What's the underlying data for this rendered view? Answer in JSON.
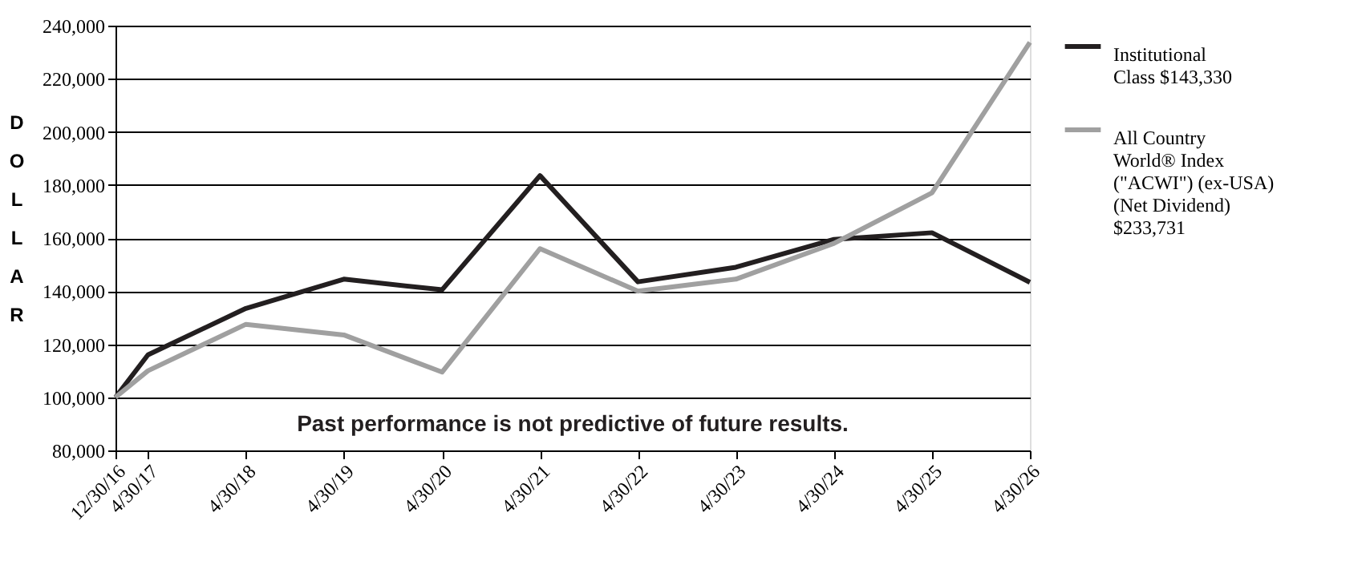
{
  "chart_data": {
    "type": "line",
    "ylabel": "DOLLAR",
    "x": [
      "2016-12-30",
      "2017-04-30",
      "2018-04-30",
      "2019-04-30",
      "2020-04-30",
      "2021-04-30",
      "2022-04-30",
      "2023-04-30",
      "2024-04-30",
      "2025-04-30",
      "2026-04-30"
    ],
    "series": [
      {
        "name": "Institutional Class $143,330",
        "color": "#231f20",
        "values": [
          100000,
          116000,
          133500,
          144500,
          140500,
          183500,
          143500,
          149000,
          159500,
          162000,
          143330
        ]
      },
      {
        "name": "All Country World® Index (\"ACWI\") (ex-USA) (Net Dividend) $233,731",
        "color": "#a0a0a0",
        "values": [
          100000,
          110000,
          127500,
          123500,
          109500,
          156000,
          140000,
          144500,
          158000,
          177000,
          233731
        ]
      }
    ],
    "xlim": [
      "2016-12-30",
      "2026-04-30"
    ],
    "xticks": [
      {
        "value": "2016-12-30",
        "label": "12/30/16"
      },
      {
        "value": "2017-04-30",
        "label": "4/30/17"
      },
      {
        "value": "2018-04-30",
        "label": "4/30/18"
      },
      {
        "value": "2019-04-30",
        "label": "4/30/19"
      },
      {
        "value": "2020-04-30",
        "label": "4/30/20"
      },
      {
        "value": "2021-04-30",
        "label": "4/30/21"
      },
      {
        "value": "2022-04-30",
        "label": "4/30/22"
      },
      {
        "value": "2023-04-30",
        "label": "4/30/23"
      },
      {
        "value": "2024-04-30",
        "label": "4/30/24"
      },
      {
        "value": "2025-04-30",
        "label": "4/30/25"
      },
      {
        "value": "2026-04-30",
        "label": "4/30/26"
      }
    ],
    "ylim": [
      80000,
      240000
    ],
    "yticks": [
      {
        "value": 80000,
        "label": "80,000"
      },
      {
        "value": 100000,
        "label": "100,000"
      },
      {
        "value": 120000,
        "label": "120,000"
      },
      {
        "value": 140000,
        "label": "140,000"
      },
      {
        "value": 160000,
        "label": "160,000"
      },
      {
        "value": 180000,
        "label": "180,000"
      },
      {
        "value": 200000,
        "label": "200,000"
      },
      {
        "value": 220000,
        "label": "220,000"
      },
      {
        "value": 240000,
        "label": "240,000"
      }
    ],
    "grid": "y",
    "legend": "top right",
    "marker": "none",
    "line_style": "solid",
    "annotations": [
      "Past performance is not predictive of future results."
    ]
  }
}
